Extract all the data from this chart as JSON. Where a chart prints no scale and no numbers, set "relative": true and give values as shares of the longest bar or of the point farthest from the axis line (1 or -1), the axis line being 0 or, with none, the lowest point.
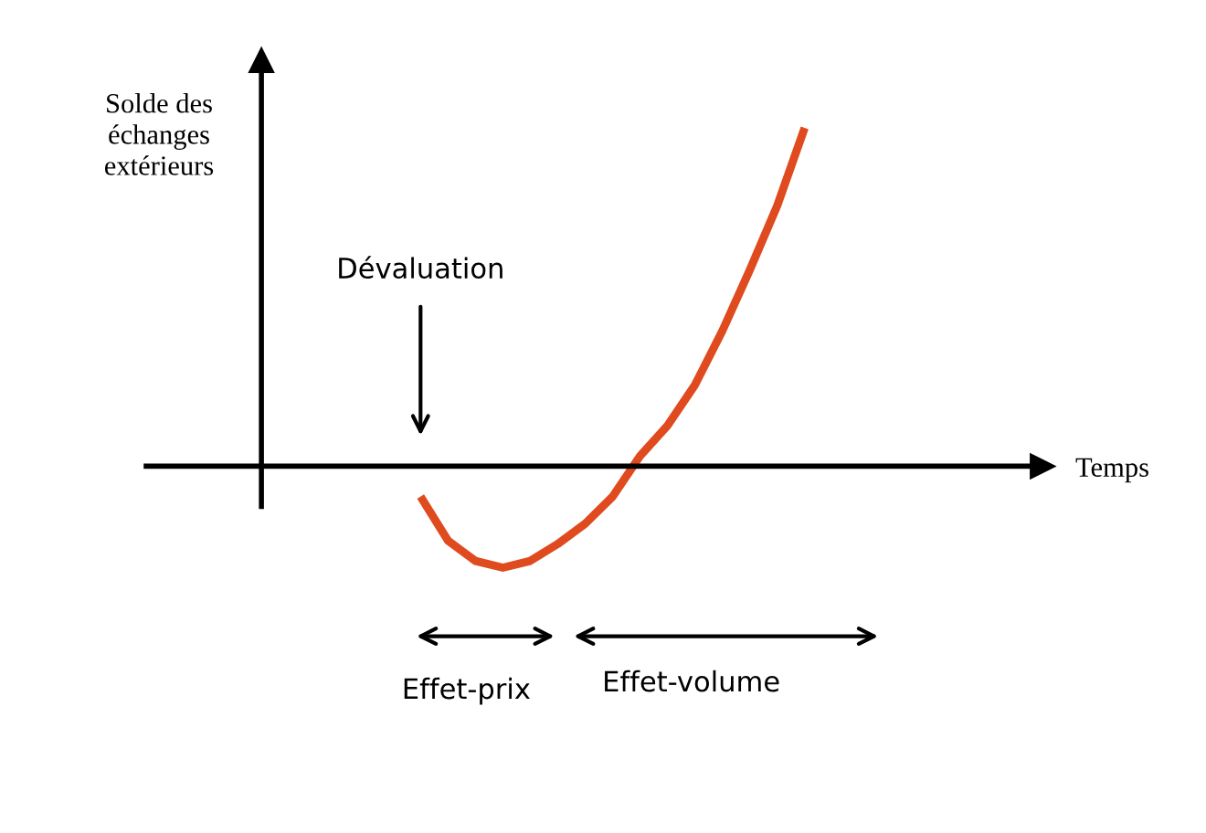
{
  "chart_data": {
    "type": "line",
    "relative": true,
    "ylabel": "Solde des\néchanges\nextérieurs",
    "categories": [
      null,
      null,
      null,
      null,
      null,
      null,
      null,
      null,
      null,
      null,
      null,
      null,
      null,
      null,
      null,
      null,
      null,
      null,
      null,
      null,
      null
    ],
    "series": [
      {
        "color": "#e04a1f",
        "values": [
          null,
          null,
          null,
          null,
          null,
          null,
          -0.09,
          -0.22,
          -0.28,
          -0.3,
          -0.28,
          -0.23,
          -0.17,
          -0.09,
          0.03,
          0.12,
          0.24,
          0.4,
          0.58,
          0.77,
          1
        ]
      }
    ],
    "annotations": [
      "Dévaluation",
      "Effet-prix",
      "Effet-volume",
      "Temps"
    ]
  }
}
